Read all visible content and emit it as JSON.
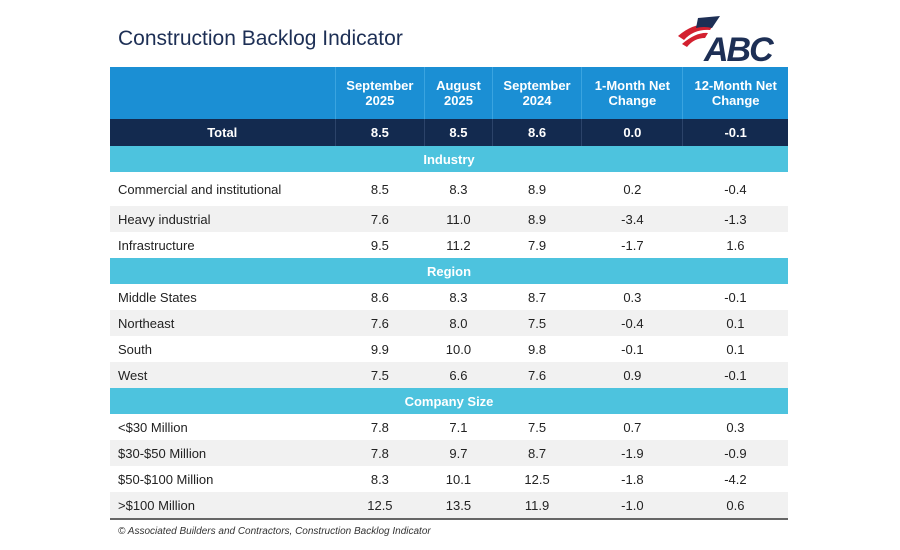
{
  "title": "Construction Backlog Indicator",
  "logo_text": "ABC",
  "colors": {
    "header": "#1b8fd4",
    "total": "#132a4f",
    "section": "#4dc3de",
    "title": "#1d2f55",
    "logo_red": "#d3202f"
  },
  "chart_data": {
    "type": "table",
    "title": "Construction Backlog Indicator",
    "columns": [
      "",
      "September 2025",
      "August 2025",
      "September 2024",
      "1-Month Net Change",
      "12-Month Net Change"
    ],
    "total": {
      "label": "Total",
      "values": [
        "8.5",
        "8.5",
        "8.6",
        "0.0",
        "-0.1"
      ]
    },
    "sections": [
      {
        "name": "Industry",
        "rows": [
          {
            "label": "Commercial and institutional",
            "values": [
              "8.5",
              "8.3",
              "8.9",
              "0.2",
              "-0.4"
            ]
          },
          {
            "label": "Heavy industrial",
            "values": [
              "7.6",
              "11.0",
              "8.9",
              "-3.4",
              "-1.3"
            ]
          },
          {
            "label": "Infrastructure",
            "values": [
              "9.5",
              "11.2",
              "7.9",
              "-1.7",
              "1.6"
            ]
          }
        ]
      },
      {
        "name": "Region",
        "rows": [
          {
            "label": "Middle States",
            "values": [
              "8.6",
              "8.3",
              "8.7",
              "0.3",
              "-0.1"
            ]
          },
          {
            "label": "Northeast",
            "values": [
              "7.6",
              "8.0",
              "7.5",
              "-0.4",
              "0.1"
            ]
          },
          {
            "label": "South",
            "values": [
              "9.9",
              "10.0",
              "9.8",
              "-0.1",
              "0.1"
            ]
          },
          {
            "label": "West",
            "values": [
              "7.5",
              "6.6",
              "7.6",
              "0.9",
              "-0.1"
            ]
          }
        ]
      },
      {
        "name": "Company Size",
        "rows": [
          {
            "label": "<$30 Million",
            "values": [
              "7.8",
              "7.1",
              "7.5",
              "0.7",
              "0.3"
            ]
          },
          {
            "label": "$30-$50 Million",
            "values": [
              "7.8",
              "9.7",
              "8.7",
              "-1.9",
              "-0.9"
            ]
          },
          {
            "label": "$50-$100 Million",
            "values": [
              "8.3",
              "10.1",
              "12.5",
              "-1.8",
              "-4.2"
            ]
          },
          {
            "label": ">$100 Million",
            "values": [
              "12.5",
              "13.5",
              "11.9",
              "-1.0",
              "0.6"
            ]
          }
        ]
      }
    ]
  },
  "footer": "© Associated Builders and Contractors, Construction Backlog Indicator"
}
